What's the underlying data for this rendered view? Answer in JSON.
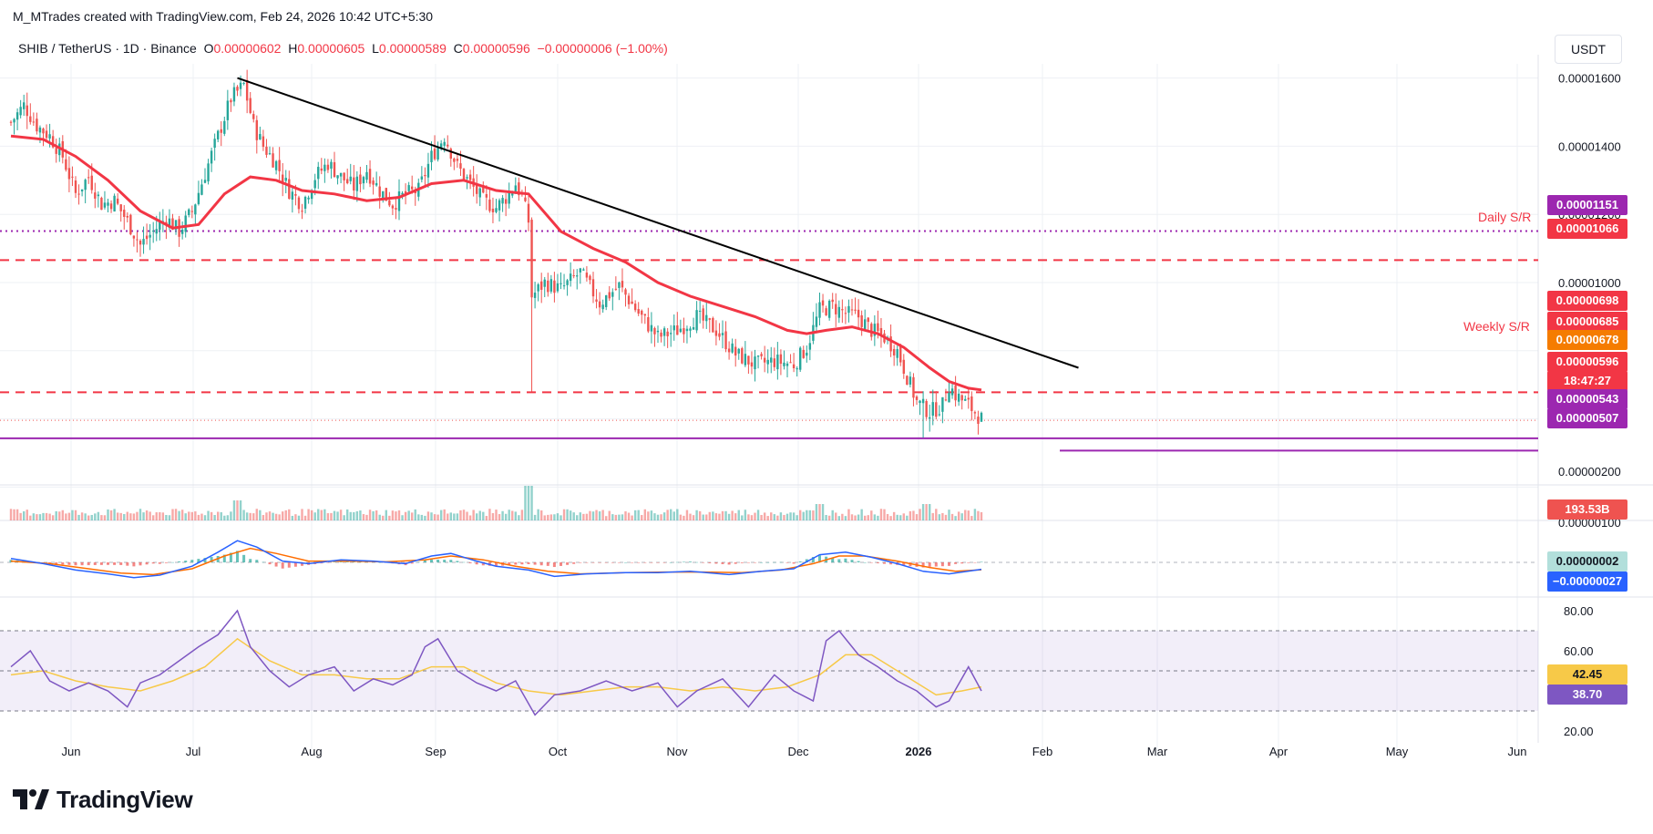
{
  "credit": "M_MTrades created with TradingView.com, Feb 24, 2026 10:42 UTC+5:30",
  "legend": {
    "symbol": "SHIB / TetherUS · 1D · Binance",
    "o_label": "O",
    "o": "0.00000602",
    "h_label": "H",
    "h": "0.00000605",
    "l_label": "L",
    "l": "0.00000589",
    "c_label": "C",
    "c": "0.00000596",
    "change": "−0.00000006 (−1.00%)"
  },
  "currency": "USDT",
  "brand": "TradingView",
  "colors": {
    "up": "#26a69a",
    "down": "#ef5350",
    "ma": "#f23645",
    "trend": "#000000",
    "purple": "#9c27b0",
    "macd": "#2962ff",
    "signal": "#ff6d00",
    "rsi": "#7e57c2",
    "rsi_ma": "#f7c948",
    "grid": "#eef0f4"
  },
  "chart_data": [
    {
      "type": "candlestick",
      "pane": "price",
      "y_axis_ticks": [
        "0.00001600",
        "0.00001400",
        "0.00001200",
        "0.00001000",
        "0.00000200"
      ],
      "x_axis_ticks": [
        "Jun",
        "Jul",
        "Aug",
        "Sep",
        "Oct",
        "Nov",
        "Dec",
        "2026",
        "Feb",
        "Mar",
        "Apr",
        "May",
        "Jun"
      ],
      "close_path": [
        [
          0,
          1.47
        ],
        [
          4,
          1.52
        ],
        [
          8,
          1.46
        ],
        [
          12,
          1.43
        ],
        [
          16,
          1.37
        ],
        [
          20,
          1.26
        ],
        [
          24,
          1.31
        ],
        [
          28,
          1.23
        ],
        [
          32,
          1.24
        ],
        [
          36,
          1.18
        ],
        [
          40,
          1.11
        ],
        [
          44,
          1.15
        ],
        [
          48,
          1.19
        ],
        [
          52,
          1.15
        ],
        [
          56,
          1.21
        ],
        [
          60,
          1.32
        ],
        [
          64,
          1.43
        ],
        [
          68,
          1.54
        ],
        [
          72,
          1.58
        ],
        [
          75,
          1.46
        ],
        [
          78,
          1.4
        ],
        [
          82,
          1.35
        ],
        [
          86,
          1.27
        ],
        [
          90,
          1.23
        ],
        [
          94,
          1.31
        ],
        [
          98,
          1.35
        ],
        [
          102,
          1.31
        ],
        [
          106,
          1.28
        ],
        [
          110,
          1.33
        ],
        [
          114,
          1.27
        ],
        [
          118,
          1.23
        ],
        [
          122,
          1.26
        ],
        [
          126,
          1.27
        ],
        [
          130,
          1.37
        ],
        [
          134,
          1.43
        ],
        [
          138,
          1.34
        ],
        [
          142,
          1.29
        ],
        [
          146,
          1.24
        ],
        [
          150,
          1.22
        ],
        [
          154,
          1.26
        ],
        [
          156,
          1.29
        ],
        [
          158,
          1.25
        ],
        [
          160,
          1.18
        ],
        [
          161,
          0.96
        ],
        [
          165,
          1.0
        ],
        [
          170,
          0.98
        ],
        [
          176,
          1.03
        ],
        [
          182,
          0.94
        ],
        [
          188,
          0.99
        ],
        [
          194,
          0.91
        ],
        [
          200,
          0.84
        ],
        [
          206,
          0.86
        ],
        [
          212,
          0.9
        ],
        [
          218,
          0.86
        ],
        [
          224,
          0.79
        ],
        [
          230,
          0.76
        ],
        [
          236,
          0.77
        ],
        [
          242,
          0.76
        ],
        [
          246,
          0.81
        ],
        [
          250,
          0.92
        ],
        [
          254,
          0.93
        ],
        [
          258,
          0.91
        ],
        [
          262,
          0.9
        ],
        [
          266,
          0.86
        ],
        [
          270,
          0.84
        ],
        [
          274,
          0.8
        ],
        [
          276,
          0.75
        ],
        [
          280,
          0.65
        ],
        [
          284,
          0.62
        ],
        [
          288,
          0.64
        ],
        [
          290,
          0.7
        ],
        [
          292,
          0.67
        ],
        [
          296,
          0.64
        ],
        [
          300,
          0.6
        ]
      ],
      "ma50": [
        [
          0,
          1.43
        ],
        [
          10,
          1.42
        ],
        [
          20,
          1.37
        ],
        [
          30,
          1.3
        ],
        [
          40,
          1.21
        ],
        [
          50,
          1.16
        ],
        [
          58,
          1.17
        ],
        [
          66,
          1.26
        ],
        [
          74,
          1.31
        ],
        [
          82,
          1.3
        ],
        [
          90,
          1.27
        ],
        [
          100,
          1.26
        ],
        [
          110,
          1.24
        ],
        [
          120,
          1.25
        ],
        [
          130,
          1.29
        ],
        [
          140,
          1.3
        ],
        [
          150,
          1.27
        ],
        [
          160,
          1.26
        ],
        [
          170,
          1.15
        ],
        [
          180,
          1.1
        ],
        [
          190,
          1.06
        ],
        [
          200,
          1.0
        ],
        [
          210,
          0.96
        ],
        [
          220,
          0.93
        ],
        [
          230,
          0.9
        ],
        [
          240,
          0.86
        ],
        [
          246,
          0.85
        ],
        [
          252,
          0.86
        ],
        [
          260,
          0.87
        ],
        [
          268,
          0.85
        ],
        [
          276,
          0.81
        ],
        [
          284,
          0.75
        ],
        [
          290,
          0.71
        ],
        [
          296,
          0.69
        ],
        [
          300,
          0.685
        ]
      ],
      "annotations": [
        "Daily S/R",
        "Weekly S/R"
      ],
      "levels": [
        {
          "label": "0.00001151",
          "value": 1.151,
          "color": "#9c27b0",
          "style": "dotted"
        },
        {
          "label": "0.00001066",
          "value": 1.066,
          "color": "#f23645",
          "style": "dashed"
        },
        {
          "label": "0.00000678",
          "value": 0.678,
          "color": "#f23645",
          "style": "dashed"
        },
        {
          "label": "0.00000543",
          "value": 0.543,
          "color": "#9c27b0",
          "style": "solid"
        },
        {
          "label": "0.00000507",
          "value": 0.507,
          "color": "#9c27b0",
          "style": "solid"
        }
      ],
      "price_badges": [
        {
          "text": "0.00000698",
          "color": "#f23645"
        },
        {
          "text": "0.00000685",
          "color": "#f23645"
        },
        {
          "text": "0.00000678",
          "color": "#f57c00"
        },
        {
          "text": "0.00000596",
          "color": "#f23645"
        },
        {
          "text": "18:47:27",
          "color": "#f23645"
        }
      ],
      "trendline": [
        [
          70,
          1.6
        ],
        [
          330,
          0.75
        ]
      ]
    },
    {
      "type": "bar",
      "pane": "volume",
      "badge": "193.53B",
      "peaks": [
        [
          70,
          0.55
        ],
        [
          160,
          0.95
        ],
        [
          250,
          0.45
        ],
        [
          283,
          0.45
        ]
      ]
    },
    {
      "type": "line",
      "pane": "macd",
      "y_axis_ticks": [
        "0.00000100"
      ],
      "badges": [
        "0.00000002",
        "−0.00000027"
      ],
      "macd": [
        [
          0,
          0.15
        ],
        [
          10,
          -0.05
        ],
        [
          20,
          -0.3
        ],
        [
          30,
          -0.45
        ],
        [
          38,
          -0.6
        ],
        [
          46,
          -0.5
        ],
        [
          56,
          -0.15
        ],
        [
          64,
          0.4
        ],
        [
          70,
          0.85
        ],
        [
          76,
          0.6
        ],
        [
          84,
          0.05
        ],
        [
          92,
          -0.05
        ],
        [
          102,
          0.1
        ],
        [
          112,
          0.05
        ],
        [
          122,
          -0.05
        ],
        [
          130,
          0.25
        ],
        [
          136,
          0.35
        ],
        [
          144,
          0.05
        ],
        [
          150,
          -0.15
        ],
        [
          160,
          -0.3
        ],
        [
          168,
          -0.55
        ],
        [
          178,
          -0.45
        ],
        [
          190,
          -0.4
        ],
        [
          200,
          -0.4
        ],
        [
          210,
          -0.35
        ],
        [
          222,
          -0.48
        ],
        [
          232,
          -0.35
        ],
        [
          242,
          -0.25
        ],
        [
          250,
          0.3
        ],
        [
          258,
          0.4
        ],
        [
          266,
          0.2
        ],
        [
          274,
          -0.05
        ],
        [
          282,
          -0.35
        ],
        [
          290,
          -0.45
        ],
        [
          300,
          -0.27
        ]
      ],
      "signal": [
        [
          0,
          0.05
        ],
        [
          12,
          -0.05
        ],
        [
          24,
          -0.25
        ],
        [
          34,
          -0.42
        ],
        [
          44,
          -0.48
        ],
        [
          56,
          -0.25
        ],
        [
          66,
          0.25
        ],
        [
          74,
          0.55
        ],
        [
          82,
          0.35
        ],
        [
          92,
          0.05
        ],
        [
          104,
          0.05
        ],
        [
          116,
          0.02
        ],
        [
          128,
          0.1
        ],
        [
          136,
          0.25
        ],
        [
          146,
          0.1
        ],
        [
          156,
          -0.15
        ],
        [
          166,
          -0.35
        ],
        [
          176,
          -0.45
        ],
        [
          190,
          -0.4
        ],
        [
          202,
          -0.38
        ],
        [
          214,
          -0.38
        ],
        [
          226,
          -0.4
        ],
        [
          238,
          -0.3
        ],
        [
          248,
          -0.05
        ],
        [
          256,
          0.25
        ],
        [
          264,
          0.25
        ],
        [
          274,
          0.05
        ],
        [
          284,
          -0.2
        ],
        [
          292,
          -0.35
        ],
        [
          300,
          -0.29
        ]
      ]
    },
    {
      "type": "line",
      "pane": "rsi",
      "y_axis_ticks": [
        "80.00",
        "60.00",
        "20.00"
      ],
      "badges": [
        "42.45",
        "38.70"
      ],
      "bands": [
        70,
        50,
        30
      ],
      "rsi": [
        [
          0,
          52
        ],
        [
          6,
          60
        ],
        [
          12,
          45
        ],
        [
          18,
          40
        ],
        [
          24,
          44
        ],
        [
          30,
          40
        ],
        [
          36,
          32
        ],
        [
          40,
          44
        ],
        [
          46,
          48
        ],
        [
          52,
          55
        ],
        [
          58,
          62
        ],
        [
          64,
          68
        ],
        [
          70,
          80
        ],
        [
          74,
          62
        ],
        [
          80,
          50
        ],
        [
          86,
          42
        ],
        [
          92,
          48
        ],
        [
          100,
          52
        ],
        [
          106,
          40
        ],
        [
          112,
          46
        ],
        [
          118,
          43
        ],
        [
          124,
          48
        ],
        [
          128,
          62
        ],
        [
          132,
          66
        ],
        [
          138,
          50
        ],
        [
          144,
          44
        ],
        [
          150,
          40
        ],
        [
          156,
          45
        ],
        [
          162,
          28
        ],
        [
          168,
          38
        ],
        [
          176,
          40
        ],
        [
          184,
          45
        ],
        [
          192,
          40
        ],
        [
          200,
          44
        ],
        [
          206,
          32
        ],
        [
          212,
          40
        ],
        [
          220,
          46
        ],
        [
          228,
          32
        ],
        [
          236,
          48
        ],
        [
          242,
          40
        ],
        [
          248,
          35
        ],
        [
          252,
          65
        ],
        [
          256,
          70
        ],
        [
          262,
          58
        ],
        [
          268,
          52
        ],
        [
          274,
          45
        ],
        [
          280,
          40
        ],
        [
          286,
          32
        ],
        [
          290,
          35
        ],
        [
          296,
          52
        ],
        [
          300,
          40
        ]
      ],
      "rsi_ma": [
        [
          0,
          48
        ],
        [
          10,
          50
        ],
        [
          20,
          45
        ],
        [
          30,
          42
        ],
        [
          40,
          40
        ],
        [
          50,
          45
        ],
        [
          60,
          52
        ],
        [
          70,
          66
        ],
        [
          80,
          55
        ],
        [
          90,
          48
        ],
        [
          100,
          48
        ],
        [
          110,
          46
        ],
        [
          120,
          46
        ],
        [
          130,
          52
        ],
        [
          140,
          52
        ],
        [
          150,
          44
        ],
        [
          160,
          40
        ],
        [
          170,
          38
        ],
        [
          180,
          40
        ],
        [
          190,
          42
        ],
        [
          200,
          42
        ],
        [
          210,
          40
        ],
        [
          220,
          42
        ],
        [
          230,
          40
        ],
        [
          240,
          42
        ],
        [
          250,
          48
        ],
        [
          258,
          58
        ],
        [
          266,
          58
        ],
        [
          276,
          48
        ],
        [
          286,
          38
        ],
        [
          294,
          40
        ],
        [
          300,
          42
        ]
      ]
    }
  ]
}
